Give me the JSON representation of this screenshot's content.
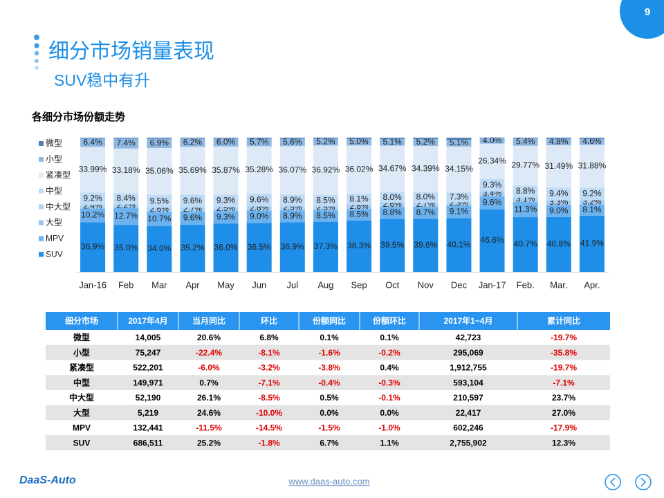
{
  "page": {
    "number": 9,
    "title": "细分市场销量表现",
    "subtitle": "SUV稳中有升"
  },
  "chart_data": {
    "type": "stacked_bar",
    "title": "各细分市场份额走势",
    "categories": [
      "Jan-16",
      "Feb",
      "Mar",
      "Apr",
      "May",
      "Jun",
      "Jul",
      "Aug",
      "Sep",
      "Oct",
      "Nov",
      "Dec",
      "Jan-17",
      "Feb.",
      "Mar.",
      "Apr."
    ],
    "ylim": [
      0,
      100
    ],
    "series": [
      {
        "name": "SUV",
        "color": "#1e8ee8",
        "values": [
          36.9,
          35.0,
          34.0,
          35.2,
          36.0,
          36.5,
          36.9,
          37.3,
          38.3,
          39.5,
          39.6,
          40.1,
          46.6,
          40.7,
          40.8,
          41.9
        ],
        "value_labels": [
          "36.9%",
          "35.0%",
          "34.0%",
          "35.2%",
          "36.0%",
          "36.5%",
          "36.9%",
          "37.3%",
          "38.3%",
          "39.5%",
          "39.6%",
          "40.1%",
          "46.6%",
          "40.7%",
          "40.8%",
          "41.9%"
        ]
      },
      {
        "name": "MPV",
        "color": "#6cb2ee",
        "values": [
          10.2,
          12.7,
          10.7,
          9.6,
          9.3,
          9.0,
          8.9,
          8.5,
          8.5,
          8.8,
          8.7,
          9.1,
          9.6,
          11.3,
          9.0,
          8.1
        ],
        "value_labels": [
          "10.2%",
          "12.7%",
          "10.7%",
          "9.6%",
          "9.3%",
          "9.0%",
          "8.9%",
          "8.5%",
          "8.5%",
          "8.8%",
          "8.7%",
          "9.1%",
          "9.6%",
          "11.3%",
          "9.0%",
          "8.1%"
        ]
      },
      {
        "name": "大型",
        "color": "#94c6f1",
        "values": [
          0.4,
          0.4,
          0.4,
          0.4,
          0.4,
          0.4,
          0.4,
          0.4,
          0.4,
          0.4,
          0.4,
          0.4,
          0.3,
          0.3,
          0.3,
          0.3
        ]
      },
      {
        "name": "中大型",
        "color": "#a9d1f4",
        "values": [
          2.4,
          2.2,
          2.6,
          2.7,
          2.5,
          2.8,
          2.5,
          2.5,
          2.8,
          2.6,
          2.7,
          2.3,
          3.4,
          3.1,
          3.3,
          3.2
        ],
        "value_labels": [
          "2.4%",
          "2.2%",
          "2.6%",
          "2.7%",
          "2.5%",
          "2.8%",
          "2.5%",
          "2.5%",
          "2.8%",
          "2.6%",
          "2.7%",
          "2.3%",
          "3.4%",
          "3.1%",
          "3.3%",
          "3.2%"
        ]
      },
      {
        "name": "中型",
        "color": "#c0dbf5",
        "values": [
          9.2,
          8.4,
          9.5,
          9.6,
          9.3,
          9.6,
          8.9,
          8.5,
          8.1,
          8.0,
          8.0,
          7.3,
          9.3,
          8.8,
          9.4,
          9.2
        ],
        "value_labels": [
          "9.2%",
          "8.4%",
          "9.5%",
          "9.6%",
          "9.3%",
          "9.6%",
          "8.9%",
          "8.5%",
          "8.1%",
          "8.0%",
          "8.0%",
          "7.3%",
          "9.3%",
          "8.8%",
          "9.4%",
          "9.2%"
        ]
      },
      {
        "name": "紧凑型",
        "color": "#dde9f6",
        "values": [
          33.99,
          33.18,
          35.06,
          35.69,
          35.87,
          35.28,
          36.07,
          36.92,
          36.02,
          34.67,
          34.39,
          34.15,
          26.34,
          29.77,
          31.49,
          31.88
        ],
        "value_labels": [
          "33.99%",
          "33.18%",
          "35.06%",
          "35.69%",
          "35.87%",
          "35.28%",
          "36.07%",
          "36.92%",
          "36.02%",
          "34.67%",
          "34.39%",
          "34.15%",
          "26.34%",
          "29.77%",
          "31.49%",
          "31.88%"
        ]
      },
      {
        "name": "小型",
        "color": "#8fb9e4",
        "values": [
          6.4,
          7.4,
          6.9,
          6.2,
          6.0,
          5.7,
          5.6,
          5.2,
          5.0,
          5.1,
          5.2,
          5.1,
          4.0,
          5.4,
          4.8,
          4.6
        ],
        "value_labels": [
          "6.4%",
          "7.4%",
          "6.9%",
          "6.2%",
          "6.0%",
          "5.7%",
          "5.6%",
          "5.2%",
          "5.0%",
          "5.1%",
          "5.2%",
          "5.1%",
          "4.0%",
          "5.4%",
          "4.8%",
          "4.6%"
        ]
      },
      {
        "name": "微型",
        "color": "#4f80b5",
        "values": [
          0.5,
          0.7,
          0.8,
          0.6,
          0.6,
          0.7,
          0.7,
          0.7,
          0.9,
          0.9,
          1.0,
          1.5,
          0.5,
          0.6,
          0.9,
          0.8
        ]
      }
    ]
  },
  "table": {
    "header": [
      "细分市场",
      "2017年4月",
      "当月同比",
      "环比",
      "份额同比",
      "份额环比",
      "2017年1~4月",
      "累计同比"
    ],
    "rows": [
      [
        "微型",
        "14,005",
        "20.6%",
        "6.8%",
        "0.1%",
        "0.1%",
        "42,723",
        "-19.7%"
      ],
      [
        "小型",
        "75,247",
        "-22.4%",
        "-8.1%",
        "-1.6%",
        "-0.2%",
        "295,069",
        "-35.8%"
      ],
      [
        "紧凑型",
        "522,201",
        "-6.0%",
        "-3.2%",
        "-3.8%",
        "0.4%",
        "1,912,755",
        "-19.7%"
      ],
      [
        "中型",
        "149,971",
        "0.7%",
        "-7.1%",
        "-0.4%",
        "-0.3%",
        "593,104",
        "-7.1%"
      ],
      [
        "中大型",
        "52,190",
        "26.1%",
        "-8.5%",
        "0.5%",
        "-0.1%",
        "210,597",
        "23.7%"
      ],
      [
        "大型",
        "5,219",
        "24.6%",
        "-10.0%",
        "0.0%",
        "0.0%",
        "22,417",
        "27.0%"
      ],
      [
        "MPV",
        "132,441",
        "-11.5%",
        "-14.5%",
        "-1.5%",
        "-1.0%",
        "602,246",
        "-17.9%"
      ],
      [
        "SUV",
        "686,511",
        "25.2%",
        "-1.8%",
        "6.7%",
        "1.1%",
        "2,755,902",
        "12.3%"
      ]
    ]
  },
  "footer": {
    "logo": "DaaS-Auto",
    "url": "www.daas-auto.com"
  }
}
